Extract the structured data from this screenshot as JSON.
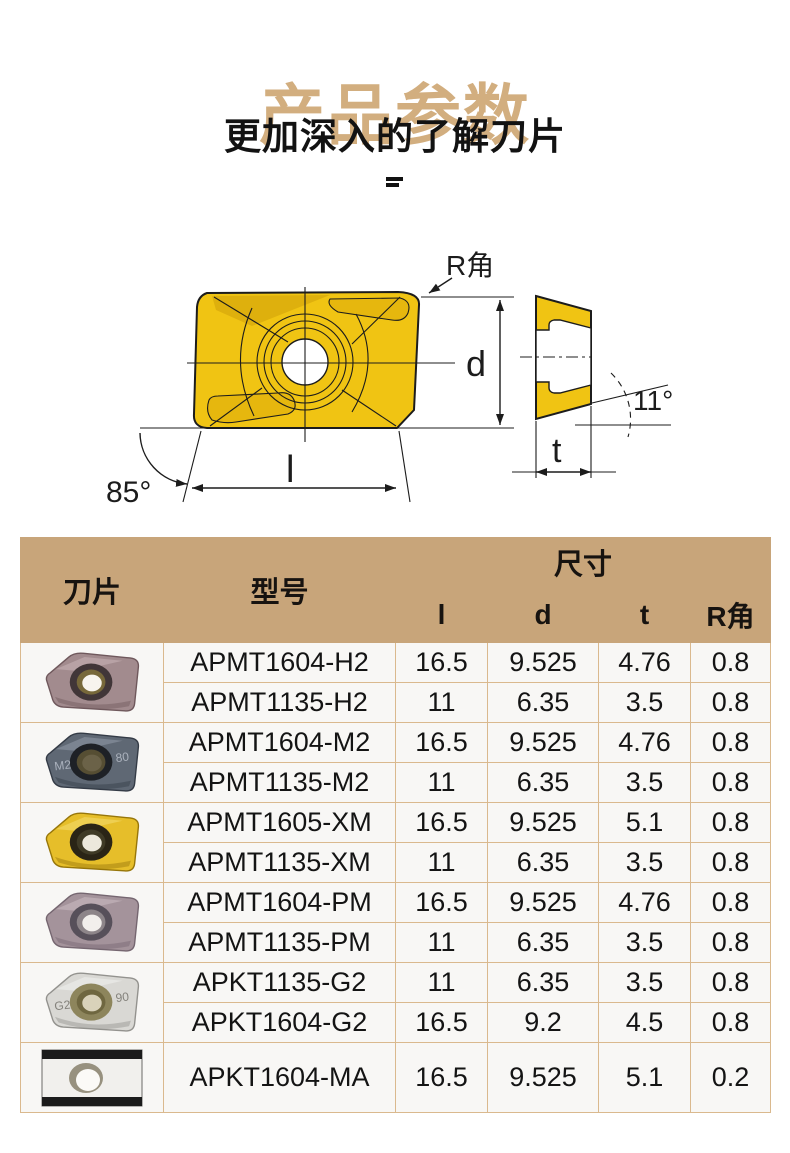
{
  "page": {
    "title": "产品参数",
    "subtitle": "更加深入的了解刀片"
  },
  "diagram": {
    "front_view_labels": {
      "r_corner": "R角",
      "d": "d",
      "l": "l",
      "angle": "85°"
    },
    "side_view_labels": {
      "t": "t",
      "angle": "11°"
    }
  },
  "table": {
    "header": {
      "insert": "刀片",
      "model": "型号",
      "size": "尺寸",
      "cols": [
        "l",
        "d",
        "t",
        "R角"
      ]
    },
    "groups": [
      {
        "thumb": {
          "type": "insert",
          "body": "#a28b8e",
          "shade": "#6f585c",
          "edge": "#cdb9bb",
          "ring": "#413638",
          "inner": "#77683a",
          "center": "#f7f4ee"
        },
        "rows": [
          {
            "model": "APMT1604-H2",
            "l": "16.5",
            "d": "9.525",
            "t": "4.76",
            "r": "0.8"
          },
          {
            "model": "APMT1135-H2",
            "l": "11",
            "d": "6.35",
            "t": "3.5",
            "r": "0.8"
          }
        ]
      },
      {
        "thumb": {
          "type": "insert",
          "body": "#5f6874",
          "shade": "#343b46",
          "edge": "#97a0ad",
          "ring": "#1e2126",
          "inner": "#564e33",
          "center": "#6b6248",
          "engrave_left": "M2",
          "engrave_right": "80",
          "engrave_color": "#aab1bc"
        },
        "rows": [
          {
            "model": "APMT1604-M2",
            "l": "16.5",
            "d": "9.525",
            "t": "4.76",
            "r": "0.8"
          },
          {
            "model": "APMT1135-M2",
            "l": "11",
            "d": "6.35",
            "t": "3.5",
            "r": "0.8"
          }
        ]
      },
      {
        "thumb": {
          "type": "insert",
          "body": "#e6be2a",
          "shade": "#97760a",
          "edge": "#f6e077",
          "ring": "#2a2416",
          "inner": "#3f3a26",
          "center": "#ece8dc"
        },
        "rows": [
          {
            "model": "APMT1605-XM",
            "l": "16.5",
            "d": "9.525",
            "t": "5.1",
            "r": "0.8"
          },
          {
            "model": "APMT1135-XM",
            "l": "11",
            "d": "6.35",
            "t": "3.5",
            "r": "0.8"
          }
        ]
      },
      {
        "thumb": {
          "type": "insert",
          "body": "#a4939b",
          "shade": "#756670",
          "edge": "#cfc2c7",
          "ring": "#57505a",
          "inner": "#8d8589",
          "center": "#f2efec"
        },
        "rows": [
          {
            "model": "APMT1604-PM",
            "l": "16.5",
            "d": "9.525",
            "t": "4.76",
            "r": "0.8"
          },
          {
            "model": "APMT1135-PM",
            "l": "11",
            "d": "6.35",
            "t": "3.5",
            "r": "0.8"
          }
        ]
      },
      {
        "thumb": {
          "type": "insert",
          "body": "#d9d8d4",
          "shade": "#93928e",
          "edge": "#f4f4f2",
          "ring": "#8d855c",
          "inner": "#6f6740",
          "center": "#d9d2ba",
          "engrave_left": "G2",
          "engrave_right": "90",
          "engrave_color": "#84827c"
        },
        "rows": [
          {
            "model": "APKT1135-G2",
            "l": "11",
            "d": "6.35",
            "t": "3.5",
            "r": "0.8"
          },
          {
            "model": "APKT1604-G2",
            "l": "16.5",
            "d": "9.2",
            "t": "4.5",
            "r": "0.8"
          }
        ]
      },
      {
        "thumb": {
          "type": "flat",
          "body": "#f1f0ed",
          "bar": "#1b1b1b",
          "ring": "#97917f",
          "center": "#fbfaf7"
        },
        "rows": [
          {
            "model": "APKT1604-MA",
            "l": "16.5",
            "d": "9.525",
            "t": "5.1",
            "r": "0.2"
          }
        ]
      }
    ]
  },
  "colors": {
    "title": "#d2ae7f",
    "header_bg": "#c8a57a",
    "border": "#dab98e",
    "cell_bg": "#f8f7f5",
    "insert_yellow": "#f0c413",
    "insert_yellow_dark": "#d8a90c",
    "line": "#1c1c1c"
  }
}
